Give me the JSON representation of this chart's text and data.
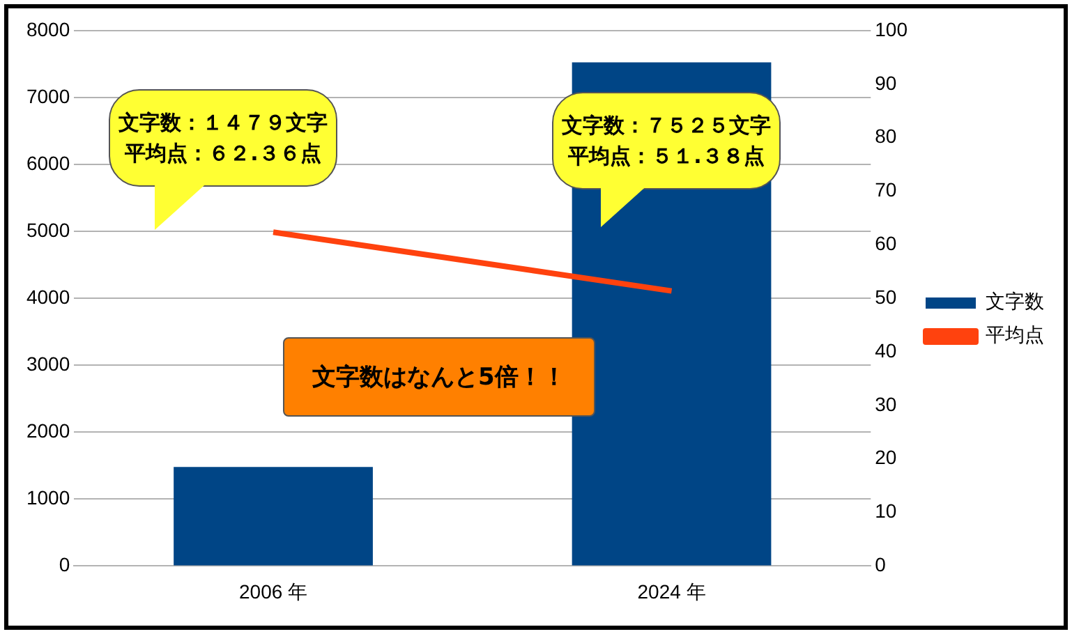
{
  "chart_data": {
    "type": "bar",
    "categories": [
      "2006 年",
      "2024 年"
    ],
    "series": [
      {
        "name": "文字数",
        "color": "#004586",
        "values": [
          1479,
          7525
        ]
      },
      {
        "name": "平均点",
        "color": "#ff420e",
        "type": "line",
        "axis": "y2",
        "values": [
          62.36,
          51.38
        ]
      }
    ],
    "ylim": [
      0,
      8000
    ],
    "yticks": [
      0,
      1000,
      2000,
      3000,
      4000,
      5000,
      6000,
      7000,
      8000
    ],
    "y2lim": [
      0,
      100
    ],
    "y2ticks": [
      0,
      10,
      20,
      30,
      40,
      50,
      60,
      70,
      80,
      90,
      100
    ],
    "grid": "y",
    "legend": "right",
    "marker": "none",
    "line_style": "solid",
    "annotations": [
      "文字数：１４７９文字",
      "平均点：６２.３６点",
      "文字数：７５２５文字",
      "平均点：５１.３８点",
      "文字数はなんと5倍！！"
    ]
  }
}
